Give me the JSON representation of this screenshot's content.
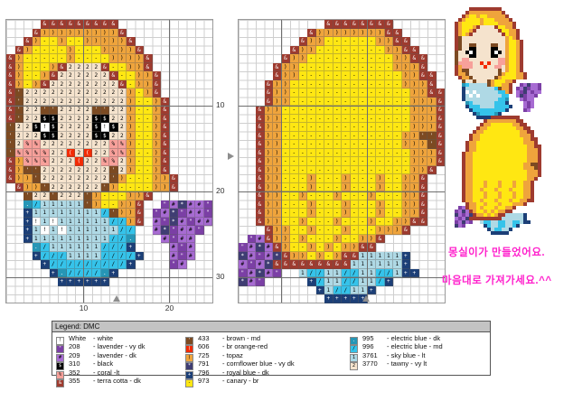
{
  "palette": {
    "0": {
      "symbol": "!",
      "code": "White",
      "name": "- white",
      "color": "#FFFFFF",
      "dark": false
    },
    "1": {
      "symbol": "\"",
      "code": "208",
      "name": "- lavender - vy dk",
      "color": "#7B3FA5",
      "dark": true
    },
    "2": {
      "symbol": "#",
      "code": "209",
      "name": "- lavender - dk",
      "color": "#A76BD2",
      "dark": false
    },
    "3": {
      "symbol": "$",
      "code": "310",
      "name": "- black",
      "color": "#000000",
      "dark": true
    },
    "4": {
      "symbol": "%",
      "code": "352",
      "name": "- coral -lt",
      "color": "#F7A09A",
      "dark": false
    },
    "5": {
      "symbol": "&",
      "code": "355",
      "name": "- terra cotta - dk",
      "color": "#9E3B2F",
      "dark": true
    },
    "6": {
      "symbol": "'",
      "code": "433",
      "name": "- brown - md",
      "color": "#7C4A22",
      "dark": true
    },
    "7": {
      "symbol": "(",
      "code": "606",
      "name": "- br orange-red",
      "color": "#F22B05",
      "dark": true
    },
    "8": {
      "symbol": ")",
      "code": "725",
      "name": "- topaz",
      "color": "#EFA43C",
      "dark": false
    },
    "9": {
      "symbol": "*",
      "code": "791",
      "name": "- cornflower blue - vy dk",
      "color": "#3F3D73",
      "dark": true
    },
    "a": {
      "symbol": "+",
      "code": "796",
      "name": "- royal blue - dk",
      "color": "#1C3F77",
      "dark": true
    },
    "b": {
      "symbol": "-",
      "code": "973",
      "name": "- canary - br",
      "color": "#FFE712",
      "dark": false
    },
    "c": {
      "symbol": ".",
      "code": "995",
      "name": "- electric blue - dk",
      "color": "#2696B6",
      "dark": true
    },
    "d": {
      "symbol": "/",
      "code": "996",
      "name": "- electric blue - md",
      "color": "#35C3EA",
      "dark": false
    },
    "e": {
      "symbol": "1",
      "code": "3761",
      "name": "- sky blue - lt",
      "color": "#AFD9E5",
      "dark": false
    },
    "f": {
      "symbol": "2",
      "code": "3770",
      "name": "- tawny - vy lt",
      "color": "#F5E3CD",
      "dark": false
    }
  },
  "charts": {
    "left": {
      "title": "mermaid-front",
      "bold_cols": [
        9,
        19
      ],
      "grid": [
        "....555555555...........",
        "...58888888885..........",
        "..58bb8bb888885.........",
        ".58bbbb8bbb88885........",
        "58bbbbb8bbbb88885.......",
        "58bbb85ffff5bb885.......",
        "58bb85ffffff5bb885......",
        "58b85ffffffff5b885......",
        "56ffffffffffff8b85......",
        "56ffffffffffff8bb85.....",
        "56ff66ffff66ff8bb85.....",
        "56ff33ffff33ff8bb85.....",
        "6ff303ffff303f8bb85.....",
        "6fff33ffff33ff8bb85.....",
        "6f44ffffffff448bb85.....",
        "64444ff7f7ff448bb85.....",
        "58444fff7ff44f8bb85.....",
        "5866ffffffff6f8bb85.....",
        "5886ffffffff68bbb885....",
        ".5886ffffff68bbbb885....",
        "..6ff6fff68bbb885.......",
        "..cdeeeee68bb885..129221",
        "..aeeeeeeeed6885.1291221",
        "..a0e0eeeeeedd85.2192122",
        "..ae0e0eeeeeedd..291221.",
        "..aeeeeeeeeeddc...2122..",
        "...cdeeeeeeddda....212..",
        "...adddeeeedddda...212..",
        "....addddddddda....12...",
        ".....acddddca...........",
        "......aaaaaa............",
        "........................",
        "........................"
      ]
    },
    "right": {
      "title": "mermaid-back",
      "bold_cols": [
        5,
        15
      ],
      "grid": [
        "..........55555555......",
        "........58888888855.....",
        ".......588bbbbbb8855....",
        "......588bbbbbbbb8855...",
        ".....588bbbbbbbbbb8855..",
        "....588bbbbbbbbbbb8885..",
        "....588bbbbbbbbbbbb8855.",
        "...588bbbbbbbbbbbbb8885.",
        "...588bbbbbbbbbbbbbb8855",
        "...588bbbbbbbbbbbbbb8885",
        "..588bbbbbbbbbbbbbbb8885",
        "..588bbbbbbbbbbbbbbb8885",
        "..588bbbbbbbbbbbbbbb8885",
        "..588bbbbbbbbbbbbbb88665",
        "..588bbbbbbbbbbbbbb88865",
        "..588bbbbbbbbbbbbbbb8885",
        "..588bbbbbbbbbbbbbbb8885",
        "..588bbbbbbbbbbbbbbb885.",
        "..588bbb8bbb8bbb8bb885..",
        "..588bbb8bbb8bbb8bb885..",
        "..588bb8bbb8bbb8bbb885..",
        "..588bbb8bbb8bbb8bb885..",
        "..588bbb8bbb8bbb8bb885..",
        "..588bb8bbb8bbb8bb8855..",
        "...588bb8bbb8bbb8885....",
        ".12588b8bbb8bb885.......",
        "129258bb8b8b8855........",
        "92129588b8b855eeeeea....",
        "2129555555555eeeeeea....",
        "12921..eddeeddeeddeaa...",
        "921.....adeeddeeda......",
        ".........aeddeea........",
        "..........aaaaa........."
      ]
    }
  },
  "axis": {
    "bold_rows": [
      10,
      20,
      30
    ],
    "bottom_labels": [
      {
        "text": "10",
        "col": 9
      },
      {
        "text": "20",
        "col": 19
      }
    ],
    "side_labels": [
      {
        "text": "10",
        "row": 10
      },
      {
        "text": "20",
        "row": 20
      },
      {
        "text": "30",
        "row": 30
      }
    ]
  },
  "legend": {
    "title": "Legend: DMC",
    "columns": [
      [
        "0",
        "1",
        "2",
        "3",
        "4",
        "5"
      ],
      [
        "6",
        "7",
        "8",
        "9",
        "a",
        "b"
      ],
      [
        "c",
        "d",
        "e",
        "f"
      ]
    ]
  },
  "notes": {
    "line1": "몽실이가  만들었어요.",
    "line2": "마음대로  가져가세요.^^",
    "color": "#FF22CC"
  }
}
